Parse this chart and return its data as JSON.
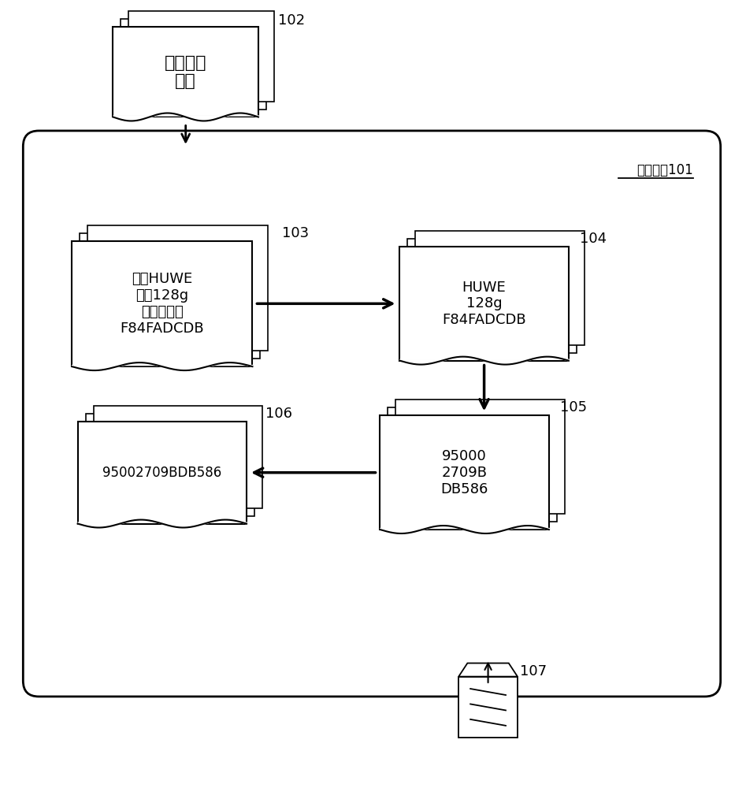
{
  "bg_color": "#ffffff",
  "fig_width": 9.47,
  "fig_height": 10.0,
  "outer_label": "计算设备101",
  "node_102_label": "用户设备\n信息",
  "node_103_label": "品牌HUWE\n内存128g\n移动识别码\nF84FADCDB",
  "node_104_label": "HUWE\n128g\nF84FADCDB",
  "node_105_label": "95000\n2709B\nDB586",
  "node_106_label": "95002709BDB586",
  "label_102": "102",
  "label_103": "103",
  "label_104": "104",
  "label_105": "105",
  "label_106": "106",
  "label_107": "107",
  "edge_color": "#000000",
  "fill_color": "#ffffff",
  "text_color": "#000000",
  "outer_fill": "#ffffff",
  "font_size_main": 13,
  "font_size_label": 13,
  "font_size_outer": 12
}
